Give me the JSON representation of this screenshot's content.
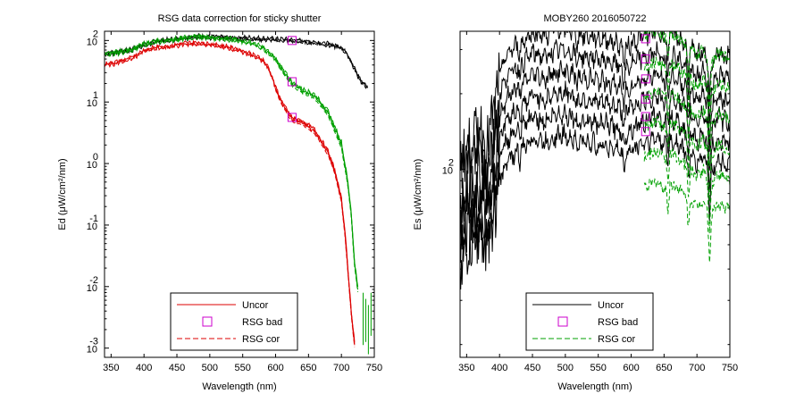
{
  "chart_data": [
    {
      "type": "line",
      "title": "RSG data correction for sticky shutter",
      "xlabel": "Wavelength (nm)",
      "ylabel": "Ed (μW/cm²/nm)",
      "xlim": [
        340,
        750
      ],
      "ylog": true,
      "ylim_exp": [
        -3.15,
        2.15
      ],
      "xticks": [
        "350",
        "400",
        "450",
        "500",
        "550",
        "600",
        "650",
        "700",
        "750"
      ],
      "yticks": [
        {
          "base": "10",
          "exp": "2",
          "v": 2
        },
        {
          "base": "10",
          "exp": "1",
          "v": 1
        },
        {
          "base": "10",
          "exp": "0",
          "v": 0
        },
        {
          "base": "10",
          "exp": "-1",
          "v": -1
        },
        {
          "base": "10",
          "exp": "-2",
          "v": -2
        },
        {
          "base": "10",
          "exp": "-3",
          "v": -3
        }
      ],
      "series": [
        {
          "name": "Uncor",
          "color": "#000000",
          "dashed": false,
          "x": [
            340,
            360,
            380,
            400,
            420,
            440,
            460,
            480,
            500,
            520,
            540,
            560,
            580,
            600,
            620,
            640,
            660,
            680,
            700,
            710,
            720,
            730,
            740
          ],
          "y": [
            1.8,
            1.82,
            1.86,
            1.95,
            2.0,
            2.02,
            2.05,
            2.08,
            2.07,
            2.06,
            2.05,
            2.05,
            2.04,
            2.03,
            2.02,
            2.0,
            1.98,
            1.95,
            1.9,
            1.78,
            1.55,
            1.35,
            1.25
          ]
        },
        {
          "name": "Uncor",
          "color": "#00a000",
          "dashed": false,
          "x": [
            340,
            360,
            380,
            400,
            420,
            440,
            460,
            480,
            500,
            520,
            540,
            560,
            580,
            600,
            610,
            625,
            640,
            660,
            680,
            700,
            710,
            715,
            720,
            725
          ],
          "y": [
            1.8,
            1.82,
            1.86,
            1.95,
            2.0,
            2.02,
            2.05,
            2.08,
            2.06,
            2.05,
            2.02,
            1.98,
            1.9,
            1.72,
            1.55,
            1.33,
            1.22,
            1.12,
            0.85,
            0.35,
            -0.3,
            -0.8,
            -1.6,
            -2.0
          ]
        },
        {
          "name": "Uncor",
          "color": "#dd0000",
          "dashed": false,
          "x": [
            340,
            360,
            380,
            400,
            420,
            440,
            460,
            480,
            500,
            520,
            540,
            560,
            580,
            590,
            600,
            610,
            625,
            640,
            660,
            680,
            690,
            700,
            705,
            710,
            715,
            720
          ],
          "y": [
            1.62,
            1.66,
            1.72,
            1.85,
            1.9,
            1.92,
            1.96,
            1.97,
            1.95,
            1.92,
            1.87,
            1.8,
            1.7,
            1.55,
            1.25,
            1.0,
            0.75,
            0.7,
            0.55,
            0.2,
            -0.1,
            -0.55,
            -1.05,
            -1.7,
            -2.4,
            -2.9
          ]
        },
        {
          "name": "RSG cor",
          "color": "#00a000",
          "dashed": true,
          "x": [
            600,
            610,
            625,
            640,
            660,
            680,
            700,
            710,
            715,
            720,
            725
          ],
          "y": [
            1.7,
            1.52,
            1.29,
            1.18,
            1.08,
            0.8,
            0.28,
            -0.35,
            -0.85,
            -1.65,
            -2.05
          ]
        },
        {
          "name": "RSG cor",
          "color": "#dd0000",
          "dashed": true,
          "x": [
            600,
            610,
            625,
            640,
            660,
            680,
            690,
            700,
            705,
            710,
            715,
            720
          ],
          "y": [
            1.22,
            0.97,
            0.71,
            0.66,
            0.51,
            0.16,
            -0.14,
            -0.6,
            -1.1,
            -1.75,
            -2.45,
            -2.95
          ]
        }
      ],
      "markers": {
        "name": "RSG bad",
        "color": "#cc00cc",
        "x": [
          625,
          625,
          625
        ],
        "y": [
          2.0,
          1.33,
          0.75
        ]
      },
      "legend": {
        "placement": "bottom-center",
        "entries": [
          {
            "label": "Uncor",
            "style": "line",
            "color": "#dd0000"
          },
          {
            "label": "RSG bad",
            "style": "square",
            "color": "#cc00cc"
          },
          {
            "label": "RSG cor",
            "style": "dashed",
            "color": "#dd0000"
          }
        ]
      }
    },
    {
      "type": "line",
      "title": "MOBY260  2016050722",
      "xlabel": "Wavelength (nm)",
      "ylabel": "Es (μW/cm²/nm)",
      "xlim": [
        340,
        750
      ],
      "ylog": true,
      "ylim_exp": [
        1.25,
        2.55
      ],
      "xticks": [
        "350",
        "400",
        "450",
        "500",
        "550",
        "600",
        "650",
        "700",
        "750"
      ],
      "yticks": [
        {
          "base": "10",
          "exp": "2",
          "v": 2
        }
      ],
      "series_note": "six uncorrected spectra (black) and corrected versions beyond 620 nm (green dashed)",
      "uncor_offsets": [
        0,
        -0.085,
        -0.17,
        -0.255,
        -0.34,
        -0.425
      ],
      "cor_offsets": [
        0,
        -0.12,
        -0.24,
        -0.36,
        -0.48,
        -0.6
      ],
      "base_x": [
        340,
        350,
        360,
        370,
        380,
        390,
        400,
        410,
        420,
        430,
        440,
        450,
        460,
        470,
        480,
        490,
        500,
        510,
        520,
        530,
        540,
        550,
        560,
        570,
        580,
        590,
        600,
        610,
        620,
        630,
        640,
        650,
        660,
        670,
        680,
        690,
        700,
        710,
        720,
        730,
        740,
        750
      ],
      "base_y": [
        2.05,
        2.08,
        2.12,
        2.18,
        2.1,
        2.2,
        2.38,
        2.45,
        2.48,
        2.5,
        2.52,
        2.55,
        2.54,
        2.53,
        2.55,
        2.56,
        2.56,
        2.55,
        2.54,
        2.53,
        2.53,
        2.52,
        2.52,
        2.51,
        2.5,
        2.48,
        2.5,
        2.52,
        2.53,
        2.54,
        2.55,
        2.52,
        2.54,
        2.53,
        2.5,
        2.48,
        2.45,
        2.48,
        2.4,
        2.46,
        2.45,
        2.44
      ],
      "markers": {
        "name": "RSG bad",
        "color": "#cc00cc",
        "x": [
          622,
          622,
          622,
          622,
          622,
          622
        ],
        "y": [
          2.52,
          2.44,
          2.36,
          2.28,
          2.21,
          2.15
        ]
      },
      "legend": {
        "placement": "bottom-center",
        "entries": [
          {
            "label": "Uncor",
            "style": "line",
            "color": "#000000"
          },
          {
            "label": "RSG bad",
            "style": "square",
            "color": "#cc00cc"
          },
          {
            "label": "RSG cor",
            "style": "dashed",
            "color": "#00a000"
          }
        ]
      }
    }
  ]
}
